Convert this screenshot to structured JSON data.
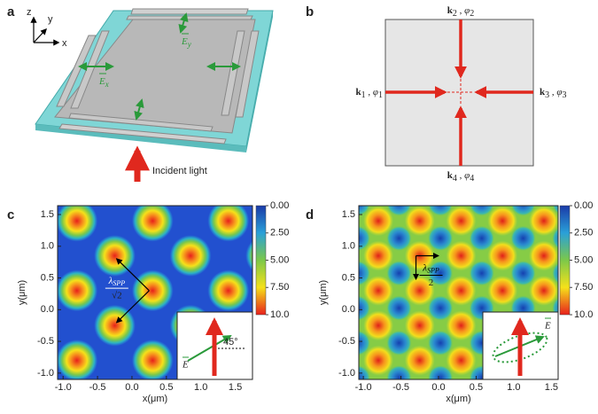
{
  "panels": [
    {
      "letter": "a",
      "axis_labels": {
        "z": "z",
        "y": "y",
        "x": "x"
      },
      "field_x": {
        "symbol": "E",
        "subscript": "x"
      },
      "field_y": {
        "symbol": "E",
        "subscript": "y"
      },
      "caption": "Incident light"
    },
    {
      "letter": "b",
      "beams": [
        {
          "k": "k",
          "phi": "φ",
          "sub": "1"
        },
        {
          "k": "k",
          "phi": "φ",
          "sub": "2"
        },
        {
          "k": "k",
          "phi": "φ",
          "sub": "3"
        },
        {
          "k": "k",
          "phi": "φ",
          "sub": "4"
        }
      ]
    },
    {
      "letter": "c",
      "x_label": "x(μm)",
      "y_label": "y(μm)",
      "xlim": [
        -1.08,
        1.75
      ],
      "xticks": [
        {
          "value": -1,
          "label": "-1.0"
        },
        -0.5,
        {
          "value": 0,
          "label": "0.0"
        },
        0.5,
        {
          "value": 1,
          "label": "1.0"
        },
        1.5
      ],
      "ylim": [
        -1.1,
        1.64
      ],
      "yticks": [
        {
          "value": -1,
          "label": "-1.0"
        },
        -0.5,
        {
          "value": 0,
          "label": "0.0"
        },
        0.5,
        {
          "value": 1,
          "label": "1.0"
        },
        1.5
      ],
      "colorbar": {
        "lim": [
          0,
          10
        ],
        "ticks": [
          {
            "value": 0,
            "label": "0.00"
          },
          {
            "value": 2.5,
            "label": "2.50"
          },
          {
            "value": 5,
            "label": "5.00"
          },
          {
            "value": 7.5,
            "label": "7.50"
          },
          {
            "value": 10,
            "label": "10.0"
          }
        ]
      },
      "annotation": {
        "lambda": "λ",
        "sub": "SPP",
        "den": "√2"
      },
      "inset": {
        "vector": "E",
        "angle": "45°"
      }
    },
    {
      "letter": "d",
      "x_label": "x(μm)",
      "y_label": "y(μm)",
      "xlim": [
        -1.06,
        1.59
      ],
      "xticks": [
        {
          "value": -1,
          "label": "-1.0"
        },
        -0.5,
        {
          "value": 0,
          "label": "0.0"
        },
        0.5,
        {
          "value": 1,
          "label": "1.0"
        },
        1.5
      ],
      "ylim": [
        -1.1,
        1.64
      ],
      "yticks": [
        {
          "value": -1,
          "label": "-1.0"
        },
        -0.5,
        {
          "value": 0,
          "label": "0.0"
        },
        0.5,
        {
          "value": 1,
          "label": "1.0"
        },
        1.5
      ],
      "colorbar": {
        "lim": [
          0,
          10
        ],
        "ticks": [
          {
            "value": 0,
            "label": "0.00"
          },
          {
            "value": 2.5,
            "label": "2.50"
          },
          {
            "value": 5,
            "label": "5.00"
          },
          {
            "value": 7.5,
            "label": "7.50"
          },
          {
            "value": 10,
            "label": "10.0"
          }
        ]
      },
      "annotation": {
        "lambda": "λ",
        "sub": "SPP",
        "den": "2"
      },
      "inset": {
        "vector": "E"
      }
    }
  ]
}
